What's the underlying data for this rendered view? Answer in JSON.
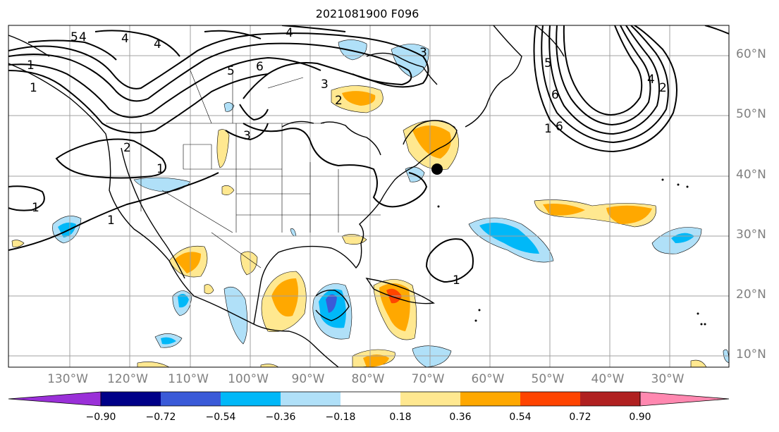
{
  "title": "2021081900 F096",
  "lat_labels": [
    "60°N",
    "50°N",
    "40°N",
    "30°N",
    "20°N",
    "10°N"
  ],
  "lon_labels": [
    "130°W",
    "120°W",
    "110°W",
    "100°W",
    "90°W",
    "80°W",
    "70°W",
    "60°W",
    "50°W",
    "40°W",
    "30°W"
  ],
  "colorbar": {
    "tick_labels": [
      "−0.90",
      "−0.72",
      "−0.54",
      "−0.36",
      "−0.18",
      "0.18",
      "0.36",
      "0.54",
      "0.72",
      "0.90"
    ],
    "colors": [
      "#9a30d8",
      "#000088",
      "#3a5ad8",
      "#00b8f8",
      "#b0e0f8",
      "#ffffff",
      "#ffe890",
      "#ffa800",
      "#ff4400",
      "#b02020",
      "#ff88b0"
    ]
  },
  "contour_labels": [
    "4",
    "4",
    "6",
    "5",
    "3",
    "4",
    "5",
    "6",
    "4",
    "3",
    "2",
    "1",
    "1",
    "2",
    "5",
    "6",
    "1",
    "1",
    "1",
    "1",
    "1",
    "2",
    "3",
    "4"
  ],
  "colors": {
    "contour": "#000000",
    "grid": "#a0a0a0",
    "coast": "#000000",
    "marker": "#000000"
  }
}
